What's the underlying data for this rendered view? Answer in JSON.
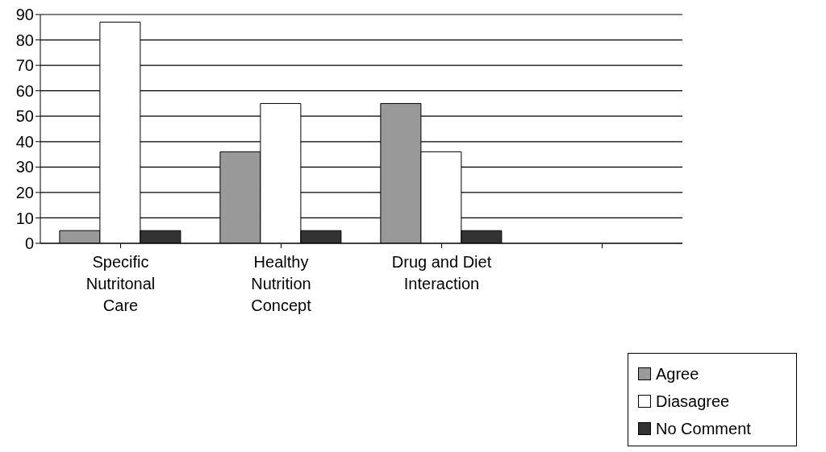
{
  "chart_data": {
    "type": "bar",
    "categories": [
      "Specific Nutritonal Care",
      "Healthy Nutrition Concept",
      "Drug and Diet Interaction",
      null
    ],
    "series": [
      {
        "name": "Agree",
        "color": "#999999",
        "values": [
          5,
          36,
          55,
          null
        ]
      },
      {
        "name": "Diasagree",
        "color": "#ffffff",
        "values": [
          87,
          55,
          36,
          null
        ]
      },
      {
        "name": "No Comment",
        "color": "#333333",
        "values": [
          5,
          5,
          5,
          null
        ]
      }
    ],
    "ylim": [
      0,
      90
    ],
    "yticks": [
      0,
      10,
      20,
      30,
      40,
      50,
      60,
      70,
      80,
      90
    ],
    "grid": "y",
    "legend": "bottom right"
  }
}
